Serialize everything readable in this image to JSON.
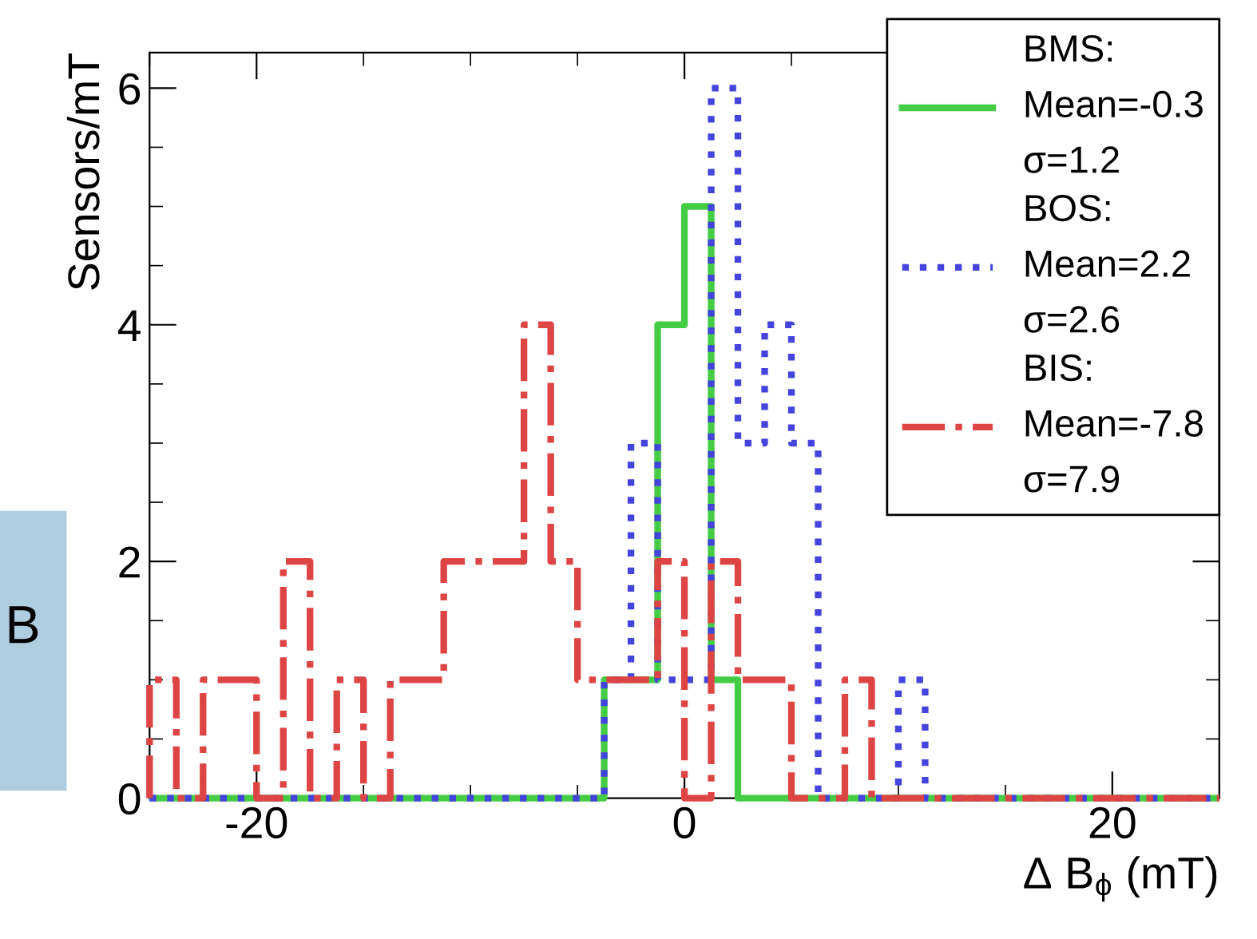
{
  "chart_data": {
    "type": "histogram",
    "ylabel": "Sensors/mT",
    "xlabel": "Δ B$_{ϕ}$ (mT)",
    "bins": [
      -25,
      -23.75,
      -22.5,
      -21.25,
      -20,
      -18.75,
      -17.5,
      -16.25,
      -15,
      -13.75,
      -12.5,
      -11.25,
      -10,
      -8.75,
      -7.5,
      -6.25,
      -5,
      -3.75,
      -2.5,
      -1.25,
      0,
      1.25,
      2.5,
      3.75,
      5,
      6.25,
      7.5,
      8.75,
      10,
      11.25,
      12.5,
      13.75,
      15,
      16.25,
      17.5,
      18.75,
      20,
      21.25,
      22.5,
      23.75,
      25
    ],
    "series": [
      {
        "name": "BMS:\nMean=-0.3\nσ=1.2",
        "color": "#44cc44",
        "line_style": "solid",
        "values": [
          0,
          0,
          0,
          0,
          0,
          0,
          0,
          0,
          0,
          0,
          0,
          0,
          0,
          0,
          0,
          0,
          0,
          1,
          1,
          4,
          5,
          1,
          0,
          0,
          0,
          0,
          0,
          0,
          0,
          0,
          0,
          0,
          0,
          0,
          0,
          0,
          0,
          0,
          0,
          0
        ]
      },
      {
        "name": "BOS:\nMean=2.2\nσ=2.6",
        "color": "#4444dd",
        "line_style": "dotted",
        "values": [
          0,
          0,
          0,
          0,
          0,
          0,
          0,
          0,
          0,
          0,
          0,
          0,
          0,
          0,
          0,
          0,
          0,
          1,
          3,
          1,
          1,
          6,
          3,
          4,
          3,
          0,
          0,
          0,
          1,
          0,
          0,
          0,
          0,
          0,
          0,
          0,
          0,
          0,
          0,
          0
        ]
      },
      {
        "name": "BIS:\nMean=-7.8\nσ=7.9",
        "color": "#dd4444",
        "line_style": "dashdot",
        "values": [
          1,
          0,
          1,
          1,
          0,
          2,
          0,
          1,
          0,
          1,
          1,
          2,
          2,
          2,
          4,
          2,
          1,
          1,
          1,
          2,
          0,
          2,
          1,
          1,
          0,
          0,
          1,
          0,
          0,
          0,
          0,
          0,
          0,
          0,
          0,
          0,
          0,
          0,
          0,
          0
        ]
      }
    ],
    "xlim": [
      -25,
      25
    ],
    "xticks": [
      -20,
      0,
      20
    ],
    "ylim": [
      0,
      6.3
    ],
    "yticks": [
      0,
      2,
      4,
      6
    ],
    "legend": "top right",
    "grid": false,
    "annotations": [
      "B"
    ]
  }
}
